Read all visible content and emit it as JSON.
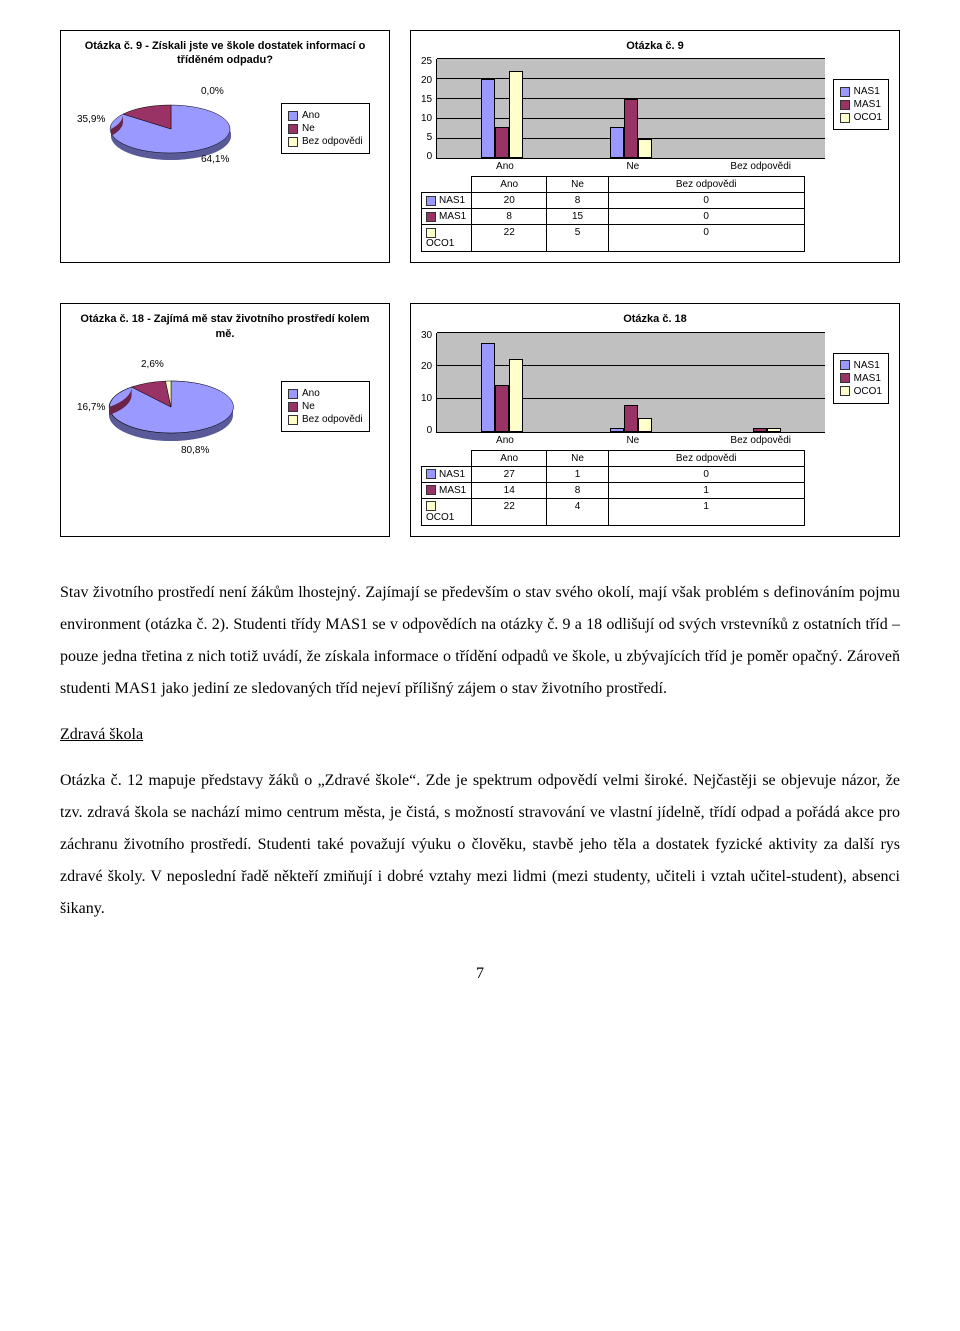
{
  "colors": {
    "nas1": "#9999ff",
    "mas1": "#993366",
    "oco1": "#ffffcc",
    "plot_bg": "#c0c0c0",
    "grid": "#000000"
  },
  "series": [
    "NAS1",
    "MAS1",
    "OCO1"
  ],
  "q9": {
    "pie": {
      "title": "Otázka č. 9 - Získali jste ve škole dostatek informací o tříděném odpadu?",
      "labels": [
        "Ano",
        "Ne",
        "Bez odpovědi"
      ],
      "values": [
        64.1,
        35.9,
        0.0
      ],
      "colors": [
        "#9999ff",
        "#993366",
        "#ffffcc"
      ],
      "annot": [
        "64,1%",
        "35,9%",
        "0,0%"
      ]
    },
    "bar": {
      "title": "Otázka č. 9",
      "categories": [
        "Ano",
        "Ne",
        "Bez odpovědi"
      ],
      "yticks": [
        0,
        5,
        10,
        15,
        20,
        25
      ],
      "ymax": 25,
      "data": {
        "NAS1": [
          20,
          8,
          0
        ],
        "MAS1": [
          8,
          15,
          0
        ],
        "OCO1": [
          22,
          5,
          0
        ]
      }
    }
  },
  "q18": {
    "pie": {
      "title": "Otázka č. 18 - Zajímá mě stav životního prostředí kolem mě.",
      "labels": [
        "Ano",
        "Ne",
        "Bez odpovědi"
      ],
      "values": [
        80.8,
        16.7,
        2.6
      ],
      "colors": [
        "#9999ff",
        "#993366",
        "#ffffcc"
      ],
      "annot": [
        "80,8%",
        "16,7%",
        "2,6%"
      ]
    },
    "bar": {
      "title": "Otázka č. 18",
      "categories": [
        "Ano",
        "Ne",
        "Bez odpovědi"
      ],
      "yticks": [
        0,
        10,
        20,
        30
      ],
      "ymax": 30,
      "data": {
        "NAS1": [
          27,
          1,
          0
        ],
        "MAS1": [
          14,
          8,
          1
        ],
        "OCO1": [
          22,
          4,
          1
        ]
      }
    }
  },
  "text": {
    "p1": "Stav životního prostředí není žákům lhostejný. Zajímají se především o stav svého okolí, mají však problém s definováním pojmu environment (otázka č. 2). Studenti třídy MAS1 se v odpovědích na otázky č. 9 a 18 odlišují od svých vrstevníků z ostatních tříd – pouze jedna třetina z nich totiž uvádí, že získala informace o třídění odpadů ve škole, u zbývajících tříd je poměr opačný. Zároveň studenti MAS1 jako jediní ze sledovaných tříd nejeví přílišný zájem o stav životního prostředí.",
    "h1": "Zdravá škola",
    "p2": "Otázka č. 12 mapuje představy žáků o „Zdravé škole“. Zde je spektrum odpovědí velmi široké. Nejčastěji se objevuje názor, že tzv. zdravá škola se nachází mimo centrum města, je čistá, s možností stravování ve vlastní jídelně, třídí odpad a pořádá akce pro záchranu životního prostředí. Studenti také považují výuku o člověku, stavbě jeho těla a dostatek fyzické aktivity za další rys zdravé školy. V neposlední řadě někteří zmiňují i dobré vztahy mezi lidmi (mezi studenty, učiteli i vztah učitel-student), absenci šikany.",
    "page": "7"
  }
}
